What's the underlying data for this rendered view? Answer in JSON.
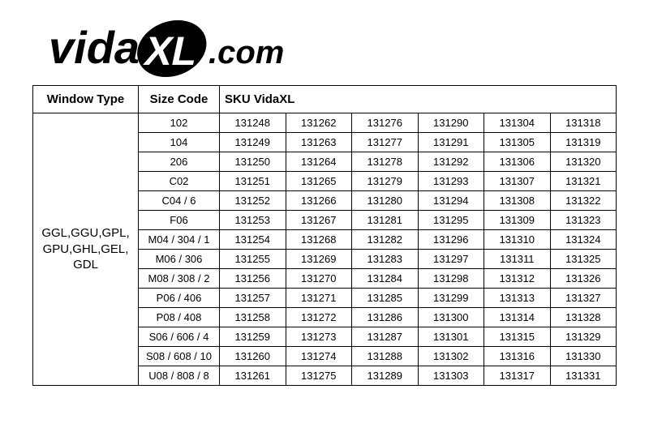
{
  "logo": {
    "text_vida": "vida",
    "text_xl": "XL",
    "text_dotcom": ".com",
    "vida_color": "#000000",
    "dotcom_color": "#000000",
    "xl_bg": "#000000",
    "xl_fg": "#ffffff"
  },
  "table": {
    "columns": [
      "Window Type",
      "Size Code",
      "SKU VidaXL"
    ],
    "window_type_label": "GGL,GGU,GPL,\nGPU,GHL,GEL,\nGDL",
    "rows": [
      {
        "size": "102",
        "skus": [
          "131248",
          "131262",
          "131276",
          "131290",
          "131304",
          "131318"
        ]
      },
      {
        "size": "104",
        "skus": [
          "131249",
          "131263",
          "131277",
          "131291",
          "131305",
          "131319"
        ]
      },
      {
        "size": "206",
        "skus": [
          "131250",
          "131264",
          "131278",
          "131292",
          "131306",
          "131320"
        ]
      },
      {
        "size": "C02",
        "skus": [
          "131251",
          "131265",
          "131279",
          "131293",
          "131307",
          "131321"
        ]
      },
      {
        "size": "C04 / 6",
        "skus": [
          "131252",
          "131266",
          "131280",
          "131294",
          "131308",
          "131322"
        ]
      },
      {
        "size": "F06",
        "skus": [
          "131253",
          "131267",
          "131281",
          "131295",
          "131309",
          "131323"
        ]
      },
      {
        "size": "M04 / 304 / 1",
        "skus": [
          "131254",
          "131268",
          "131282",
          "131296",
          "131310",
          "131324"
        ]
      },
      {
        "size": "M06 / 306",
        "skus": [
          "131255",
          "131269",
          "131283",
          "131297",
          "131311",
          "131325"
        ]
      },
      {
        "size": "M08 / 308 / 2",
        "skus": [
          "131256",
          "131270",
          "131284",
          "131298",
          "131312",
          "131326"
        ]
      },
      {
        "size": "P06 / 406",
        "skus": [
          "131257",
          "131271",
          "131285",
          "131299",
          "131313",
          "131327"
        ]
      },
      {
        "size": "P08 / 408",
        "skus": [
          "131258",
          "131272",
          "131286",
          "131300",
          "131314",
          "131328"
        ]
      },
      {
        "size": "S06 / 606 / 4",
        "skus": [
          "131259",
          "131273",
          "131287",
          "131301",
          "131315",
          "131329"
        ]
      },
      {
        "size": "S08 / 608 / 10",
        "skus": [
          "131260",
          "131274",
          "131288",
          "131302",
          "131316",
          "131330"
        ]
      },
      {
        "size": "U08 / 808 / 8",
        "skus": [
          "131261",
          "131275",
          "131289",
          "131303",
          "131317",
          "131331"
        ]
      }
    ],
    "border_color": "#000000",
    "text_color": "#000000",
    "bg_color": "#ffffff"
  }
}
